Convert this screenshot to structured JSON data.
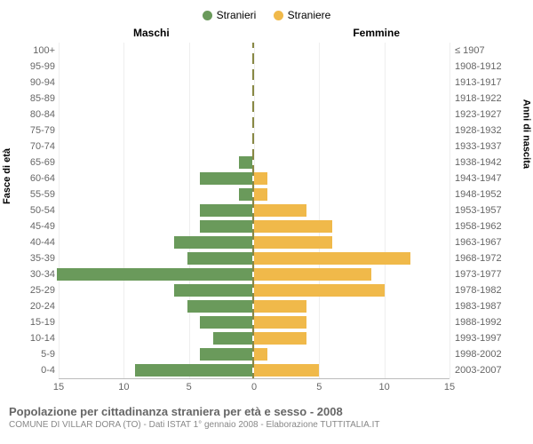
{
  "legend": {
    "male": {
      "label": "Stranieri",
      "color": "#6a9a5b"
    },
    "female": {
      "label": "Straniere",
      "color": "#f0b94a"
    }
  },
  "headers": {
    "left": "Maschi",
    "right": "Femmine"
  },
  "axis_titles": {
    "left": "Fasce di età",
    "right": "Anni di nascita"
  },
  "chart": {
    "type": "population-pyramid",
    "x_max": 15,
    "x_ticks": [
      15,
      10,
      5,
      0,
      5,
      10,
      15
    ],
    "bar_color_male": "#6a9a5b",
    "bar_color_female": "#f0b94a",
    "background_color": "#ffffff",
    "grid_color": "#eeeeee",
    "rows": [
      {
        "age": "100+",
        "birth": "≤ 1907",
        "m": 0,
        "f": 0
      },
      {
        "age": "95-99",
        "birth": "1908-1912",
        "m": 0,
        "f": 0
      },
      {
        "age": "90-94",
        "birth": "1913-1917",
        "m": 0,
        "f": 0
      },
      {
        "age": "85-89",
        "birth": "1918-1922",
        "m": 0,
        "f": 0
      },
      {
        "age": "80-84",
        "birth": "1923-1927",
        "m": 0,
        "f": 0
      },
      {
        "age": "75-79",
        "birth": "1928-1932",
        "m": 0,
        "f": 0
      },
      {
        "age": "70-74",
        "birth": "1933-1937",
        "m": 0,
        "f": 0
      },
      {
        "age": "65-69",
        "birth": "1938-1942",
        "m": 1,
        "f": 0
      },
      {
        "age": "60-64",
        "birth": "1943-1947",
        "m": 4,
        "f": 1
      },
      {
        "age": "55-59",
        "birth": "1948-1952",
        "m": 1,
        "f": 1
      },
      {
        "age": "50-54",
        "birth": "1953-1957",
        "m": 4,
        "f": 4
      },
      {
        "age": "45-49",
        "birth": "1958-1962",
        "m": 4,
        "f": 6
      },
      {
        "age": "40-44",
        "birth": "1963-1967",
        "m": 6,
        "f": 6
      },
      {
        "age": "35-39",
        "birth": "1968-1972",
        "m": 5,
        "f": 12
      },
      {
        "age": "30-34",
        "birth": "1973-1977",
        "m": 15,
        "f": 9
      },
      {
        "age": "25-29",
        "birth": "1978-1982",
        "m": 6,
        "f": 10
      },
      {
        "age": "20-24",
        "birth": "1983-1987",
        "m": 5,
        "f": 4
      },
      {
        "age": "15-19",
        "birth": "1988-1992",
        "m": 4,
        "f": 4
      },
      {
        "age": "10-14",
        "birth": "1993-1997",
        "m": 3,
        "f": 4
      },
      {
        "age": "5-9",
        "birth": "1998-2002",
        "m": 4,
        "f": 1
      },
      {
        "age": "0-4",
        "birth": "2003-2007",
        "m": 9,
        "f": 5
      }
    ]
  },
  "footer": {
    "title": "Popolazione per cittadinanza straniera per età e sesso - 2008",
    "subtitle": "COMUNE DI VILLAR DORA (TO) - Dati ISTAT 1° gennaio 2008 - Elaborazione TUTTITALIA.IT"
  }
}
